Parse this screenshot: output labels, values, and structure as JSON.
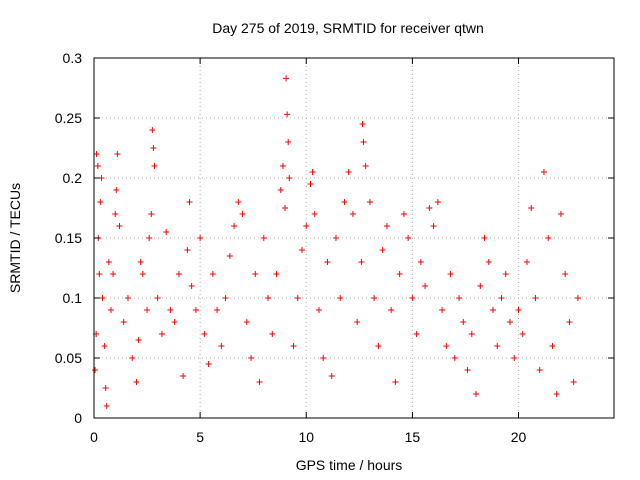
{
  "chart_data": {
    "type": "scatter",
    "title": "Day 275 of 2019, SRMTID for receiver qtwn",
    "xlabel": "GPS time / hours",
    "ylabel": "SRMTID / TECUs",
    "xlim": [
      0,
      24.5
    ],
    "ylim": [
      0,
      0.3
    ],
    "x_ticks": [
      0,
      5,
      10,
      15,
      20
    ],
    "y_ticks": [
      0,
      0.05,
      0.1,
      0.15,
      0.2,
      0.25,
      0.3
    ],
    "x_tick_labels": [
      "0",
      "5",
      "10",
      "15",
      "20"
    ],
    "y_tick_labels": [
      "0",
      "0.05",
      "0.1",
      "0.15",
      "0.2",
      "0.25",
      "0.3"
    ],
    "grid": true,
    "marker": "plus",
    "color": "#ff0000",
    "x_range_of_points": [
      0,
      22.8
    ],
    "series": [
      {
        "name": "SRMTID",
        "points": [
          [
            0.05,
            0.04
          ],
          [
            0.1,
            0.07
          ],
          [
            0.12,
            0.22
          ],
          [
            0.18,
            0.21
          ],
          [
            0.2,
            0.15
          ],
          [
            0.25,
            0.12
          ],
          [
            0.3,
            0.18
          ],
          [
            0.35,
            0.2
          ],
          [
            0.4,
            0.1
          ],
          [
            0.5,
            0.06
          ],
          [
            0.55,
            0.025
          ],
          [
            0.6,
            0.01
          ],
          [
            0.7,
            0.13
          ],
          [
            0.8,
            0.09
          ],
          [
            0.9,
            0.12
          ],
          [
            1.0,
            0.17
          ],
          [
            1.05,
            0.19
          ],
          [
            1.1,
            0.22
          ],
          [
            1.2,
            0.16
          ],
          [
            1.4,
            0.08
          ],
          [
            1.6,
            0.1
          ],
          [
            1.8,
            0.05
          ],
          [
            2.0,
            0.03
          ],
          [
            2.1,
            0.065
          ],
          [
            2.2,
            0.13
          ],
          [
            2.3,
            0.12
          ],
          [
            2.5,
            0.09
          ],
          [
            2.6,
            0.15
          ],
          [
            2.7,
            0.17
          ],
          [
            2.75,
            0.24
          ],
          [
            2.8,
            0.225
          ],
          [
            2.85,
            0.21
          ],
          [
            3.0,
            0.1
          ],
          [
            3.2,
            0.07
          ],
          [
            3.4,
            0.155
          ],
          [
            3.6,
            0.09
          ],
          [
            3.8,
            0.08
          ],
          [
            4.0,
            0.12
          ],
          [
            4.2,
            0.035
          ],
          [
            4.4,
            0.14
          ],
          [
            4.5,
            0.18
          ],
          [
            4.6,
            0.11
          ],
          [
            4.8,
            0.09
          ],
          [
            5.0,
            0.15
          ],
          [
            5.2,
            0.07
          ],
          [
            5.4,
            0.045
          ],
          [
            5.6,
            0.12
          ],
          [
            5.8,
            0.09
          ],
          [
            6.0,
            0.06
          ],
          [
            6.2,
            0.1
          ],
          [
            6.4,
            0.135
          ],
          [
            6.6,
            0.16
          ],
          [
            6.8,
            0.18
          ],
          [
            7.0,
            0.17
          ],
          [
            7.2,
            0.08
          ],
          [
            7.4,
            0.05
          ],
          [
            7.6,
            0.12
          ],
          [
            7.8,
            0.03
          ],
          [
            8.0,
            0.15
          ],
          [
            8.2,
            0.1
          ],
          [
            8.4,
            0.07
          ],
          [
            8.6,
            0.12
          ],
          [
            8.8,
            0.19
          ],
          [
            8.9,
            0.21
          ],
          [
            9.0,
            0.175
          ],
          [
            9.05,
            0.283
          ],
          [
            9.1,
            0.253
          ],
          [
            9.15,
            0.23
          ],
          [
            9.2,
            0.2
          ],
          [
            9.4,
            0.06
          ],
          [
            9.6,
            0.1
          ],
          [
            9.8,
            0.14
          ],
          [
            10.0,
            0.16
          ],
          [
            10.2,
            0.195
          ],
          [
            10.3,
            0.205
          ],
          [
            10.4,
            0.17
          ],
          [
            10.6,
            0.09
          ],
          [
            10.8,
            0.05
          ],
          [
            11.0,
            0.13
          ],
          [
            11.2,
            0.035
          ],
          [
            11.4,
            0.15
          ],
          [
            11.6,
            0.1
          ],
          [
            11.8,
            0.18
          ],
          [
            12.0,
            0.205
          ],
          [
            12.2,
            0.17
          ],
          [
            12.4,
            0.08
          ],
          [
            12.6,
            0.13
          ],
          [
            12.65,
            0.245
          ],
          [
            12.7,
            0.23
          ],
          [
            12.8,
            0.21
          ],
          [
            13.0,
            0.18
          ],
          [
            13.2,
            0.1
          ],
          [
            13.4,
            0.06
          ],
          [
            13.6,
            0.14
          ],
          [
            13.8,
            0.16
          ],
          [
            14.0,
            0.09
          ],
          [
            14.2,
            0.03
          ],
          [
            14.4,
            0.12
          ],
          [
            14.6,
            0.17
          ],
          [
            14.8,
            0.15
          ],
          [
            15.0,
            0.1
          ],
          [
            15.2,
            0.07
          ],
          [
            15.4,
            0.13
          ],
          [
            15.6,
            0.11
          ],
          [
            15.8,
            0.175
          ],
          [
            16.0,
            0.16
          ],
          [
            16.2,
            0.18
          ],
          [
            16.4,
            0.09
          ],
          [
            16.6,
            0.06
          ],
          [
            16.8,
            0.12
          ],
          [
            17.0,
            0.05
          ],
          [
            17.2,
            0.1
          ],
          [
            17.4,
            0.08
          ],
          [
            17.6,
            0.04
          ],
          [
            17.8,
            0.07
          ],
          [
            18.0,
            0.02
          ],
          [
            18.2,
            0.11
          ],
          [
            18.4,
            0.15
          ],
          [
            18.6,
            0.13
          ],
          [
            18.8,
            0.09
          ],
          [
            19.0,
            0.06
          ],
          [
            19.2,
            0.1
          ],
          [
            19.4,
            0.12
          ],
          [
            19.6,
            0.08
          ],
          [
            19.8,
            0.05
          ],
          [
            20.0,
            0.09
          ],
          [
            20.2,
            0.07
          ],
          [
            20.4,
            0.13
          ],
          [
            20.6,
            0.175
          ],
          [
            20.8,
            0.1
          ],
          [
            21.0,
            0.04
          ],
          [
            21.2,
            0.205
          ],
          [
            21.4,
            0.15
          ],
          [
            21.6,
            0.06
          ],
          [
            21.8,
            0.02
          ],
          [
            22.0,
            0.17
          ],
          [
            22.2,
            0.12
          ],
          [
            22.4,
            0.08
          ],
          [
            22.6,
            0.03
          ],
          [
            22.8,
            0.1
          ]
        ]
      }
    ]
  }
}
